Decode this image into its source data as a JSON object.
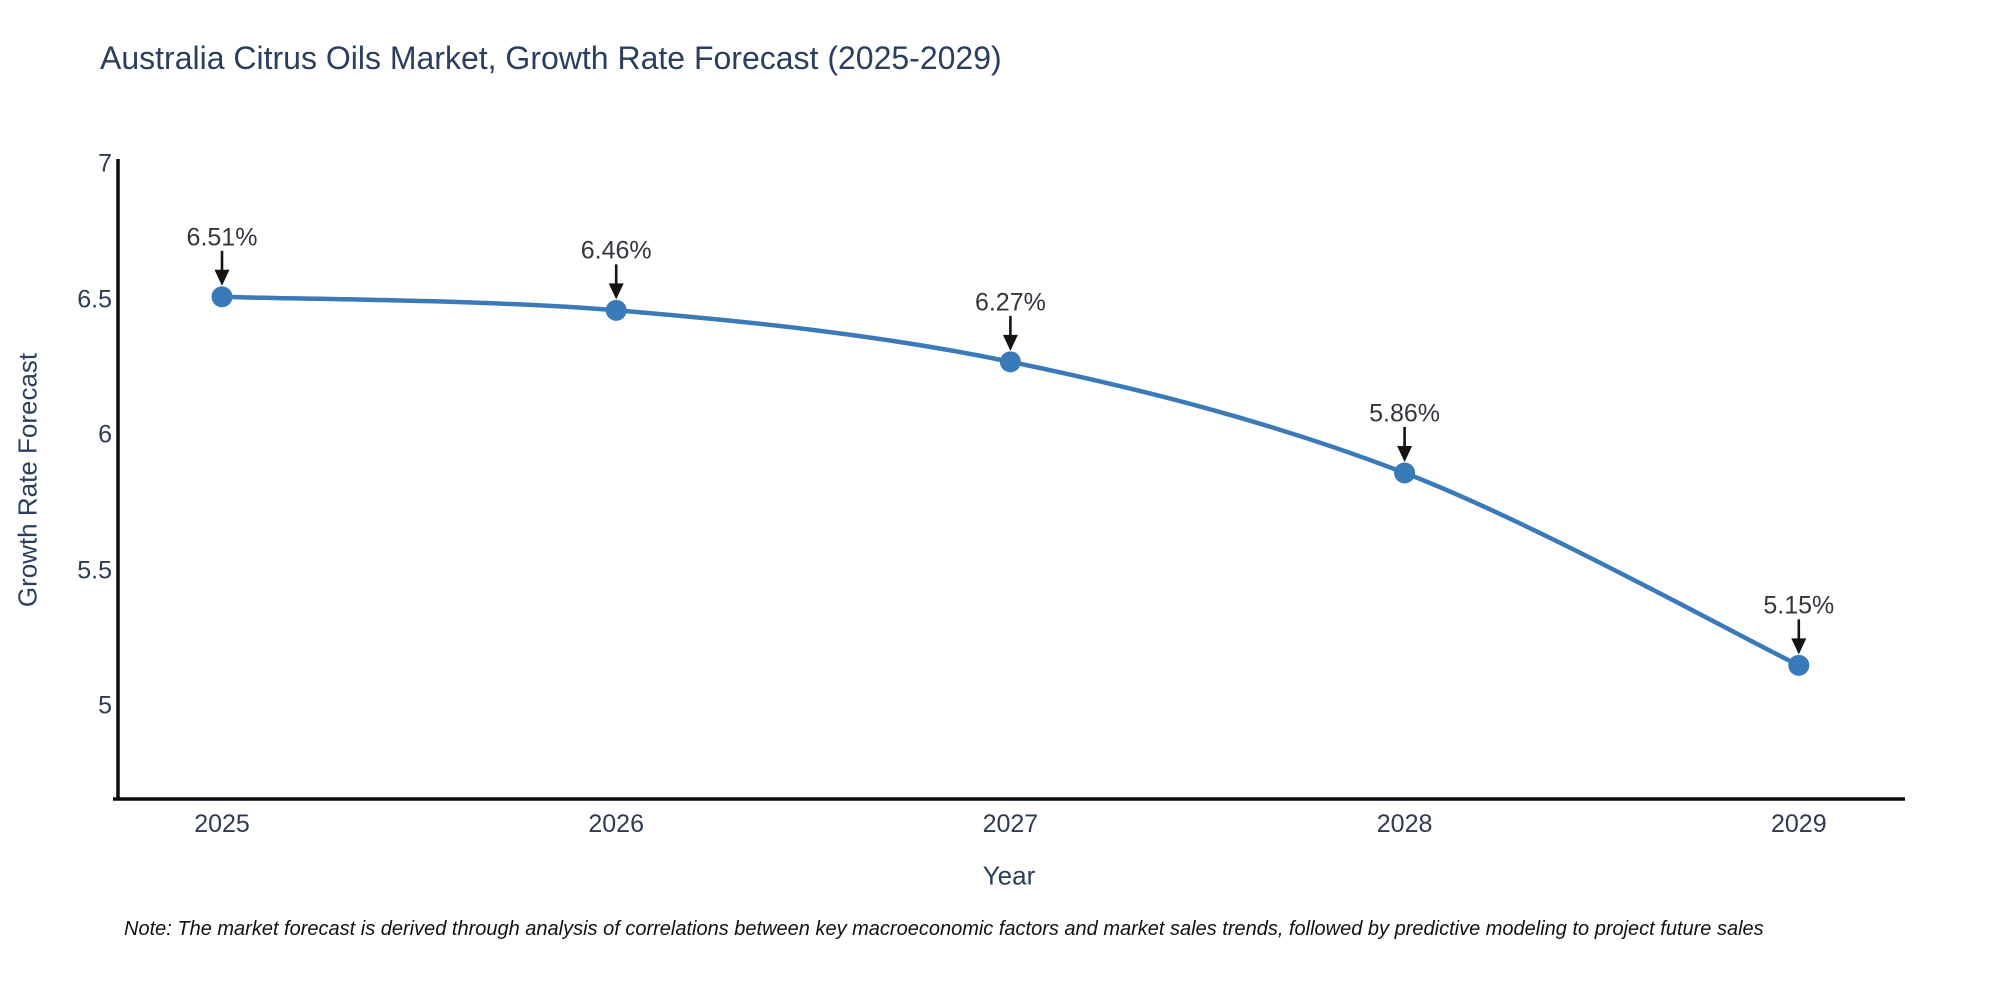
{
  "page": {
    "background_color": "#ffffff"
  },
  "chart_data": {
    "type": "line",
    "title": "Australia Citrus Oils Market, Growth Rate Forecast (2025-2029)",
    "xlabel": "Year",
    "ylabel": "Growth Rate Forecast",
    "line_shape": "spline",
    "grid": false,
    "legend": "none",
    "xlim": [
      2024.73,
      2029.27
    ],
    "ylim": [
      4.65,
      7.01
    ],
    "x": [
      2025,
      2026,
      2027,
      2028,
      2029
    ],
    "values": [
      6.51,
      6.46,
      6.27,
      5.86,
      5.15
    ],
    "points": [
      {
        "year": 2025,
        "value": 6.51,
        "label": "6.51%"
      },
      {
        "year": 2026,
        "value": 6.46,
        "label": "6.46%"
      },
      {
        "year": 2027,
        "value": 6.27,
        "label": "6.27%"
      },
      {
        "year": 2028,
        "value": 5.86,
        "label": "5.86%"
      },
      {
        "year": 2029,
        "value": 5.15,
        "label": "5.15%"
      }
    ],
    "y_ticks": [
      "7",
      "6.5",
      "6",
      "5.5",
      "5"
    ],
    "note": "Note: The market forecast is derived through analysis of correlations between key macroeconomic factors and market sales trends, followed by predictive modeling to project future sales",
    "colors": {
      "line": "#3a7ab8",
      "marker": "#3a7ab8",
      "arrow": "#141414",
      "axis_line": "#0d0d0d",
      "title_text": "#2a3f5f",
      "tick_text": "#2f3b52",
      "annotation_text": "#33373d",
      "note_text": "#111111"
    }
  }
}
